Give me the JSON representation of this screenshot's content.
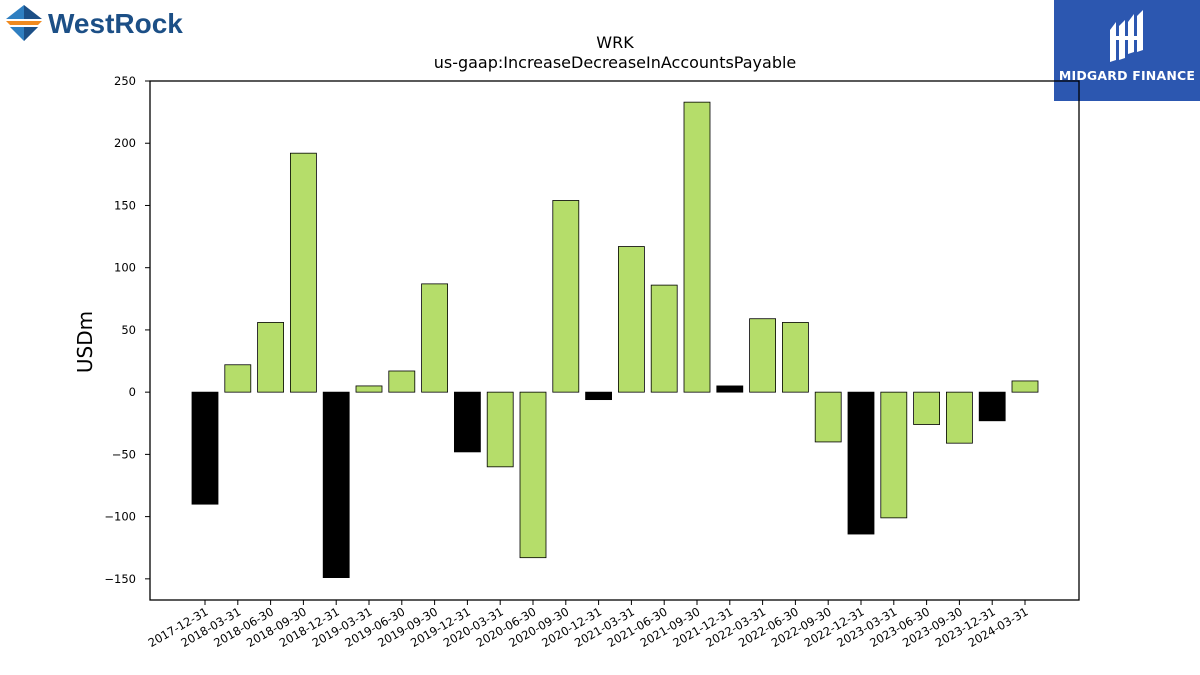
{
  "logos": {
    "left_brand": "WestRock",
    "right_brand": "MIDGARD FINANCE"
  },
  "colors": {
    "positive_bar": "#b5dd6a",
    "negative_bar": "#000000",
    "brand_blue": "#1c4f86",
    "brand_orange": "#f08a1f",
    "midgard_bg": "#2c57b0"
  },
  "chart_data": {
    "type": "bar",
    "title": "WRK",
    "subtitle": "us-gaap:IncreaseDecreaseInAccountsPayable",
    "xlabel": "",
    "ylabel": "USDm",
    "ylim": [
      -167,
      250
    ],
    "yticks": [
      250,
      200,
      150,
      100,
      50,
      0,
      -50,
      -100,
      -150
    ],
    "grid": false,
    "legend": "none",
    "categories": [
      "2017-12-31",
      "2018-03-31",
      "2018-06-30",
      "2018-09-30",
      "2018-12-31",
      "2019-03-31",
      "2019-06-30",
      "2019-09-30",
      "2019-12-31",
      "2020-03-31",
      "2020-06-30",
      "2020-09-30",
      "2020-12-31",
      "2021-03-31",
      "2021-06-30",
      "2021-09-30",
      "2021-12-31",
      "2022-03-31",
      "2022-06-30",
      "2022-09-30",
      "2022-12-31",
      "2023-03-31",
      "2023-06-30",
      "2023-09-30",
      "2023-12-31",
      "2024-03-31"
    ],
    "values": [
      -90,
      22,
      56,
      192,
      -149,
      5,
      17,
      87,
      -48,
      -60,
      -133,
      154,
      -6,
      117,
      86,
      233,
      5,
      59,
      56,
      -40,
      -114,
      -101,
      -26,
      -41,
      -23,
      9
    ],
    "bar_colors": [
      "black",
      "green",
      "green",
      "green",
      "black",
      "green",
      "green",
      "green",
      "black",
      "green",
      "green",
      "green",
      "black",
      "green",
      "green",
      "green",
      "black",
      "green",
      "green",
      "green",
      "black",
      "green",
      "green",
      "green",
      "black",
      "green"
    ]
  }
}
